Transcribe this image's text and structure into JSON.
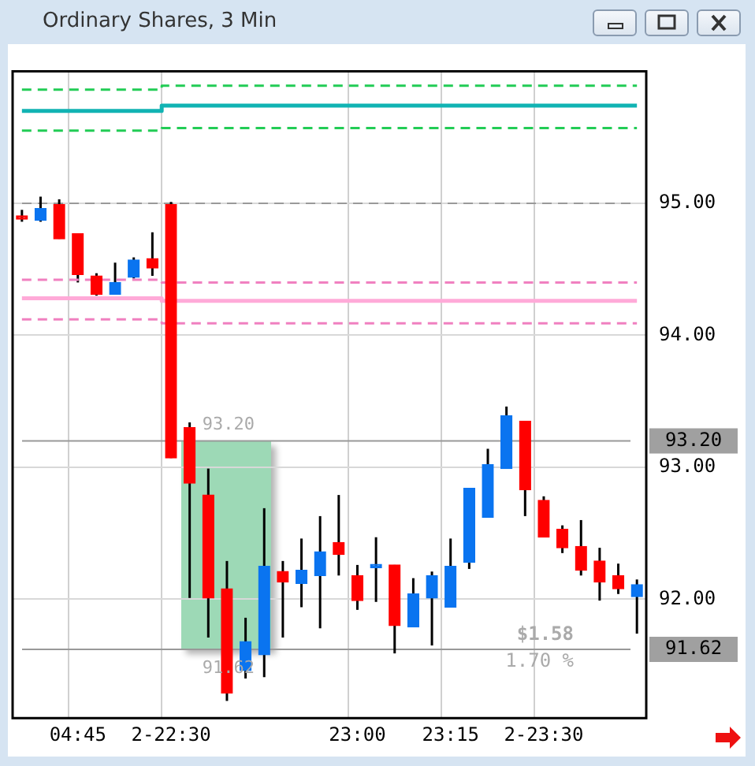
{
  "chart_data": {
    "type": "candlestick",
    "title": "Ordinary Shares, 3 Min",
    "categories": [
      null,
      null,
      null,
      "04:45",
      null,
      null,
      null,
      null,
      "2-22:30",
      null,
      null,
      null,
      null,
      null,
      null,
      null,
      null,
      null,
      "23:00",
      null,
      null,
      null,
      null,
      "23:15",
      null,
      null,
      null,
      null,
      "2-23:30",
      null,
      null,
      null,
      null,
      null
    ],
    "ohlc": [
      [
        94.89,
        94.95,
        94.86,
        94.88
      ],
      [
        94.87,
        95.05,
        94.86,
        94.96
      ],
      [
        94.99,
        95.03,
        94.73,
        94.73
      ],
      [
        94.77,
        94.77,
        94.4,
        94.46
      ],
      [
        94.45,
        94.47,
        94.3,
        94.31
      ],
      [
        94.31,
        94.55,
        94.31,
        94.4
      ],
      [
        94.44,
        94.59,
        94.43,
        94.57
      ],
      [
        94.58,
        94.78,
        94.45,
        94.51
      ],
      [
        94.99,
        95.01,
        93.07,
        93.07
      ],
      [
        93.3,
        93.34,
        92.01,
        92.88
      ],
      [
        92.79,
        92.99,
        91.71,
        92.01
      ],
      [
        92.08,
        92.29,
        91.23,
        91.29
      ],
      [
        91.46,
        91.86,
        91.4,
        91.68
      ],
      [
        91.58,
        92.69,
        91.41,
        92.25
      ],
      [
        92.21,
        92.29,
        91.71,
        92.13
      ],
      [
        92.12,
        92.46,
        91.94,
        92.22
      ],
      [
        92.18,
        92.63,
        91.78,
        92.36
      ],
      [
        92.43,
        92.79,
        92.18,
        92.34
      ],
      [
        92.18,
        92.26,
        91.92,
        91.99
      ],
      [
        92.24,
        92.47,
        91.98,
        92.25
      ],
      [
        92.26,
        92.26,
        91.59,
        91.8
      ],
      [
        91.79,
        92.16,
        91.79,
        92.04
      ],
      [
        92.01,
        92.21,
        91.65,
        92.18
      ],
      [
        91.94,
        92.46,
        91.94,
        92.25
      ],
      [
        92.28,
        92.84,
        92.23,
        92.84
      ],
      [
        92.62,
        93.14,
        92.62,
        93.02
      ],
      [
        92.99,
        93.46,
        92.99,
        93.39
      ],
      [
        93.35,
        93.35,
        92.63,
        92.83
      ],
      [
        92.75,
        92.78,
        92.47,
        92.47
      ],
      [
        92.53,
        92.56,
        92.35,
        92.39
      ],
      [
        92.4,
        92.6,
        92.18,
        92.22
      ],
      [
        92.29,
        92.39,
        91.99,
        92.13
      ],
      [
        92.18,
        92.27,
        92.04,
        92.08
      ],
      [
        92.02,
        92.15,
        91.74,
        92.11
      ]
    ],
    "colors": [
      "#ff0000",
      "#0a74f0",
      "#ff0000",
      "#ff0000",
      "#ff0000",
      "#0a74f0",
      "#0a74f0",
      "#ff0000",
      "#ff0000",
      "#ff0000",
      "#ff0000",
      "#ff0000",
      "#0a74f0",
      "#0a74f0",
      "#ff0000",
      "#0a74f0",
      "#0a74f0",
      "#ff0000",
      "#ff0000",
      "#0a74f0",
      "#ff0000",
      "#0a74f0",
      "#0a74f0",
      "#0a74f0",
      "#0a74f0",
      "#0a74f0",
      "#0a74f0",
      "#ff0000",
      "#ff0000",
      "#ff0000",
      "#ff0000",
      "#ff0000",
      "#ff0000",
      "#0a74f0"
    ],
    "series": [
      {
        "type": "step",
        "color": "#22cc55",
        "line_style": "dashed",
        "values": [
          95.86,
          95.86,
          95.86,
          95.86,
          95.86,
          95.86,
          95.86,
          95.86,
          95.89,
          95.89,
          95.89,
          95.89,
          95.89,
          95.89,
          95.89,
          95.89,
          95.89,
          95.89,
          95.89,
          95.89,
          95.89,
          95.89,
          95.89,
          95.89,
          95.89,
          95.89,
          95.89,
          95.89,
          95.89,
          95.89,
          95.89,
          95.89,
          95.89,
          95.89
        ]
      },
      {
        "type": "step",
        "color": "#11b3b3",
        "line_style": "solid",
        "values": [
          95.7,
          95.7,
          95.7,
          95.7,
          95.7,
          95.7,
          95.7,
          95.7,
          95.74,
          95.74,
          95.74,
          95.74,
          95.74,
          95.74,
          95.74,
          95.74,
          95.74,
          95.74,
          95.74,
          95.74,
          95.74,
          95.74,
          95.74,
          95.74,
          95.74,
          95.74,
          95.74,
          95.74,
          95.74,
          95.74,
          95.74,
          95.74,
          95.74,
          95.74
        ]
      },
      {
        "type": "step",
        "color": "#22cc55",
        "line_style": "dashed",
        "values": [
          95.55,
          95.55,
          95.55,
          95.55,
          95.55,
          95.55,
          95.55,
          95.55,
          95.57,
          95.57,
          95.57,
          95.57,
          95.57,
          95.57,
          95.57,
          95.57,
          95.57,
          95.57,
          95.57,
          95.57,
          95.57,
          95.57,
          95.57,
          95.57,
          95.57,
          95.57,
          95.57,
          95.57,
          95.57,
          95.57,
          95.57,
          95.57,
          95.57,
          95.57
        ]
      },
      {
        "type": "step",
        "color": "#f080c0",
        "line_style": "dashed",
        "values": [
          94.42,
          94.42,
          94.42,
          94.42,
          94.42,
          94.42,
          94.42,
          94.42,
          94.4,
          94.4,
          94.4,
          94.4,
          94.4,
          94.4,
          94.4,
          94.4,
          94.4,
          94.4,
          94.4,
          94.4,
          94.4,
          94.4,
          94.4,
          94.4,
          94.4,
          94.4,
          94.4,
          94.4,
          94.4,
          94.4,
          94.4,
          94.4,
          94.4,
          94.4
        ]
      },
      {
        "type": "step",
        "color": "#ffaad8",
        "line_style": "solid",
        "values": [
          94.28,
          94.28,
          94.28,
          94.28,
          94.28,
          94.28,
          94.28,
          94.28,
          94.26,
          94.26,
          94.26,
          94.26,
          94.26,
          94.26,
          94.26,
          94.26,
          94.26,
          94.26,
          94.26,
          94.26,
          94.26,
          94.26,
          94.26,
          94.26,
          94.26,
          94.26,
          94.26,
          94.26,
          94.26,
          94.26,
          94.26,
          94.26,
          94.26,
          94.26
        ]
      },
      {
        "type": "step",
        "color": "#f080c0",
        "line_style": "dashed",
        "values": [
          94.12,
          94.12,
          94.12,
          94.12,
          94.12,
          94.12,
          94.12,
          94.12,
          94.09,
          94.09,
          94.09,
          94.09,
          94.09,
          94.09,
          94.09,
          94.09,
          94.09,
          94.09,
          94.09,
          94.09,
          94.09,
          94.09,
          94.09,
          94.09,
          94.09,
          94.09,
          94.09,
          94.09,
          94.09,
          94.09,
          94.09,
          94.09,
          94.09,
          94.09
        ]
      }
    ],
    "ref_lines": [
      {
        "axis": "y",
        "value": 95.0,
        "color": "#999999",
        "line_style": "dashed"
      },
      {
        "axis": "y",
        "value": 93.2,
        "label": "93.20",
        "color": "#999999",
        "line_style": "solid"
      },
      {
        "axis": "y",
        "value": 91.62,
        "label": "91.62",
        "color": "#999999",
        "line_style": "solid"
      }
    ],
    "annotations": [
      "$1.58",
      "1.70 %"
    ],
    "ylim": [
      91.1,
      96.0
    ],
    "yticks": [
      {
        "value": 92,
        "label": "92.00"
      },
      {
        "value": 93,
        "label": "93.00"
      },
      {
        "value": 94,
        "label": "94.00"
      },
      {
        "value": 95,
        "label": "95.00"
      }
    ],
    "grid": true,
    "legend": false
  }
}
